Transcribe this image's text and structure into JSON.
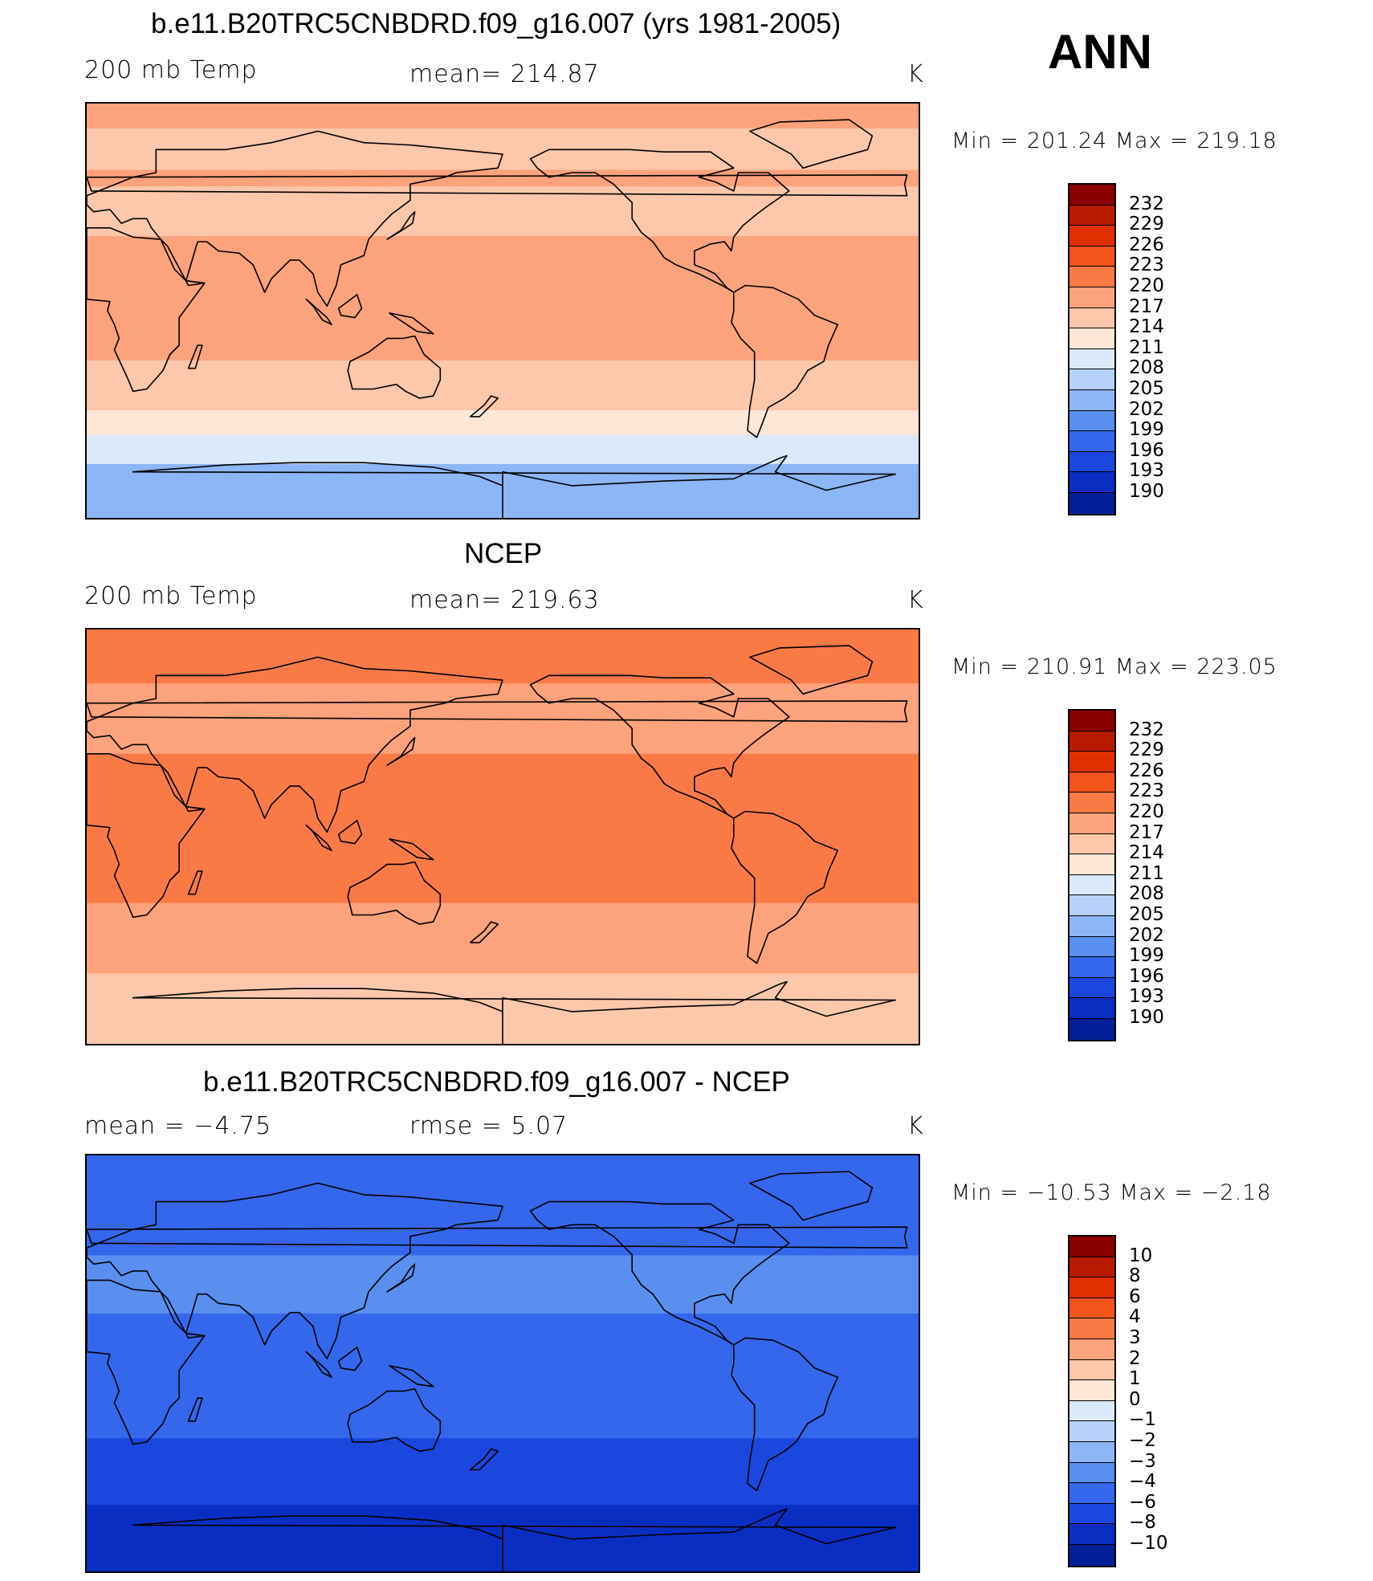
{
  "season": "ANN",
  "panels": [
    {
      "title": "b.e11.B20TRC5CNBDRD.f09_g16.007 (yrs 1981-2005)",
      "left_label": "200 mb Temp",
      "center_label": "mean=  214.87",
      "right_label": "K",
      "minmax": "Min  =  201.24  Max  =  219.18",
      "levels": [
        "232",
        "229",
        "226",
        "223",
        "220",
        "217",
        "214",
        "211",
        "208",
        "205",
        "202",
        "199",
        "196",
        "193",
        "190"
      ],
      "colors": [
        "#8a0000",
        "#b81a00",
        "#e03000",
        "#f2541a",
        "#fa7a45",
        "#fca27c",
        "#fdc7ab",
        "#fee7d6",
        "#dbeafb",
        "#b7d2fa",
        "#8db6f7",
        "#5a8ff0",
        "#3567ec",
        "#1a47de",
        "#0a2ec2",
        "#031f97"
      ],
      "field_bands": [
        "#fca27c",
        "#fdc7ab",
        "#fee7d6",
        "#dbeafb",
        "#b7d2fa",
        "#8db6f7",
        "#5a8ff0"
      ]
    },
    {
      "title": "NCEP",
      "left_label": "200 mb Temp",
      "center_label": "mean=  219.63",
      "right_label": "K",
      "minmax": "Min  =  210.91  Max  =  223.05",
      "levels": [
        "232",
        "229",
        "226",
        "223",
        "220",
        "217",
        "214",
        "211",
        "208",
        "205",
        "202",
        "199",
        "196",
        "193",
        "190"
      ],
      "colors": [
        "#8a0000",
        "#b81a00",
        "#e03000",
        "#f2541a",
        "#fa7a45",
        "#fca27c",
        "#fdc7ab",
        "#fee7d6",
        "#dbeafb",
        "#b7d2fa",
        "#8db6f7",
        "#5a8ff0",
        "#3567ec",
        "#1a47de",
        "#0a2ec2",
        "#031f97"
      ],
      "field_bands": [
        "#fa7a45",
        "#fca27c",
        "#fdc7ab",
        "#fee7d6"
      ]
    },
    {
      "title": "b.e11.B20TRC5CNBDRD.f09_g16.007 - NCEP",
      "left_label": "mean  =   −4.75",
      "center_label": "rmse  =     5.07",
      "right_label": "K",
      "minmax": "Min  =  −10.53  Max  =   −2.18",
      "levels": [
        "10",
        "8",
        "6",
        "4",
        "3",
        "2",
        "1",
        "0",
        "−1",
        "−2",
        "−3",
        "−4",
        "−6",
        "−8",
        "−10"
      ],
      "colors": [
        "#8a0000",
        "#b81a00",
        "#e03000",
        "#f2541a",
        "#fa7a45",
        "#fca27c",
        "#fdc7ab",
        "#fee7d6",
        "#dbeafb",
        "#b7d2fa",
        "#8db6f7",
        "#5a8ff0",
        "#3567ec",
        "#1a47de",
        "#0a2ec2",
        "#031f97"
      ],
      "field_bands": [
        "#8db6f7",
        "#5a8ff0",
        "#3567ec",
        "#1a47de",
        "#0a2ec2"
      ]
    }
  ]
}
